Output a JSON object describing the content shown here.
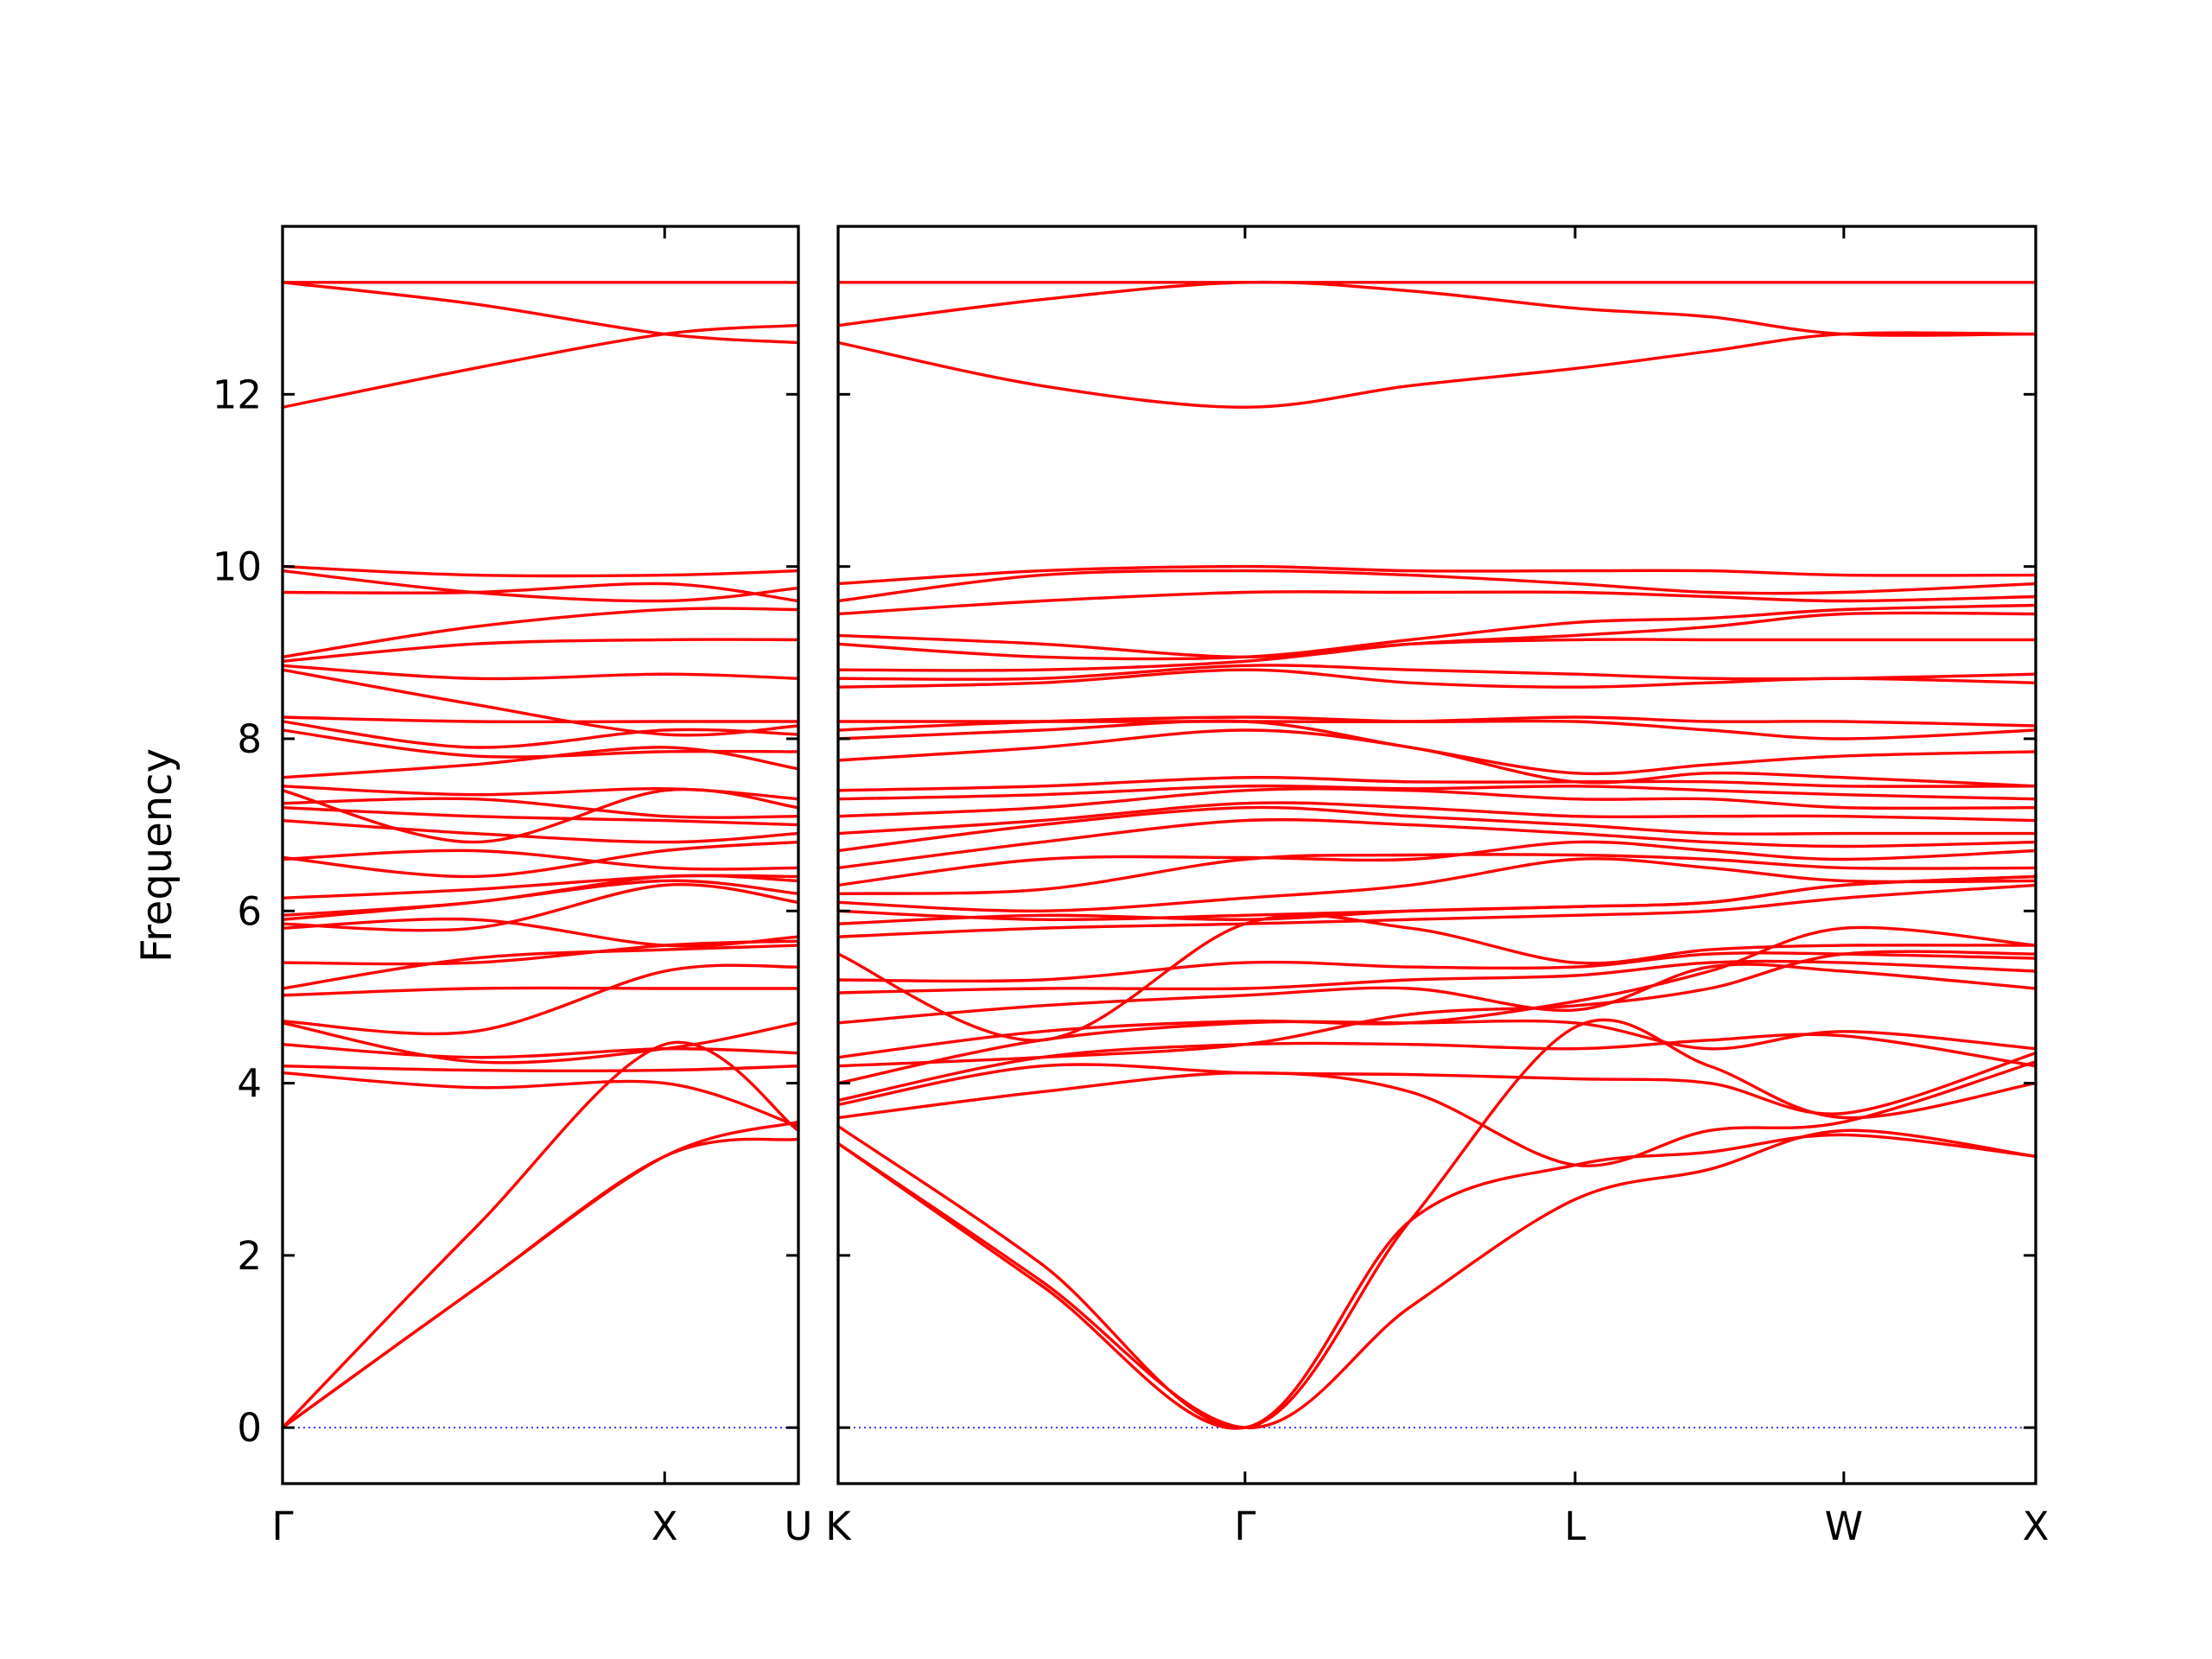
{
  "chart_data": {
    "type": "line",
    "title": "",
    "xlabel": "",
    "ylabel": "Frequency",
    "ylim": [
      -0.65,
      13.95
    ],
    "yticks": [
      0,
      2,
      4,
      6,
      8,
      10,
      12
    ],
    "grid": false,
    "legend": "none",
    "colors": {
      "bands": "#ff0000",
      "zero_line": "#1a1aff",
      "axes": "#000000"
    },
    "panels": [
      {
        "name": "Γ-X-U",
        "xlim": [
          0,
          1.35
        ],
        "labels": [
          {
            "x": 0,
            "text": "Γ"
          },
          {
            "x": 1.0,
            "text": "X"
          },
          {
            "x": 1.35,
            "text": "U"
          }
        ],
        "x": [
          0,
          0.5,
          1.0,
          1.35
        ],
        "bands": [
          [
            0,
            1.6,
            3.15,
            3.35
          ],
          [
            0,
            2.3,
            4.45,
            3.45
          ],
          [
            0,
            1.6,
            3.15,
            3.55
          ],
          [
            4.12,
            3.95,
            4.0,
            3.5
          ],
          [
            4.2,
            4.15,
            4.15,
            4.2
          ],
          [
            4.45,
            4.3,
            4.4,
            4.35
          ],
          [
            4.7,
            4.25,
            4.4,
            4.7
          ],
          [
            4.72,
            4.6,
            5.3,
            5.35
          ],
          [
            5.02,
            5.1,
            5.1,
            5.1
          ],
          [
            5.1,
            5.45,
            5.55,
            5.6
          ],
          [
            5.4,
            5.4,
            5.6,
            5.65
          ],
          [
            5.8,
            5.9,
            5.6,
            5.7
          ],
          [
            5.85,
            5.8,
            6.3,
            6.1
          ],
          [
            5.9,
            6.1,
            6.35,
            6.2
          ],
          [
            5.95,
            6.1,
            6.4,
            6.35
          ],
          [
            6.15,
            6.25,
            6.4,
            6.4
          ],
          [
            6.6,
            6.7,
            6.5,
            6.5
          ],
          [
            6.62,
            6.4,
            6.7,
            6.8
          ],
          [
            7.05,
            6.9,
            6.8,
            6.9
          ],
          [
            7.2,
            7.1,
            7.05,
            7.0
          ],
          [
            7.25,
            7.3,
            7.1,
            7.1
          ],
          [
            7.4,
            6.8,
            7.4,
            7.2
          ],
          [
            7.45,
            7.35,
            7.42,
            7.3
          ],
          [
            7.55,
            7.7,
            7.9,
            7.65
          ],
          [
            8.1,
            7.8,
            7.85,
            7.85
          ],
          [
            8.2,
            7.9,
            8.1,
            8.05
          ],
          [
            8.25,
            8.2,
            8.2,
            8.2
          ],
          [
            8.8,
            8.4,
            8.05,
            8.15
          ],
          [
            8.85,
            8.7,
            8.75,
            8.7
          ],
          [
            8.9,
            9.1,
            9.15,
            9.15
          ],
          [
            8.95,
            9.3,
            9.5,
            9.5
          ],
          [
            9.7,
            9.7,
            9.8,
            9.6
          ],
          [
            9.95,
            9.7,
            9.6,
            9.75
          ],
          [
            10.0,
            9.9,
            9.9,
            9.95
          ],
          [
            11.85,
            12.3,
            12.7,
            12.8
          ],
          [
            13.3,
            13.05,
            12.7,
            12.6
          ],
          [
            13.3,
            13.3,
            13.3,
            13.3
          ]
        ]
      },
      {
        "name": "K-Γ-L-W-X",
        "xlim": [
          0,
          3.12
        ],
        "labels": [
          {
            "x": 0,
            "text": "K"
          },
          {
            "x": 1.06,
            "text": "Γ"
          },
          {
            "x": 1.92,
            "text": "L"
          },
          {
            "x": 2.62,
            "text": "W"
          },
          {
            "x": 3.12,
            "text": "X"
          }
        ],
        "x": [
          0,
          0.53,
          1.06,
          1.49,
          1.92,
          2.27,
          2.62,
          3.12
        ],
        "bands": [
          [
            3.3,
            1.7,
            0,
            1.4,
            2.65,
            3.0,
            3.45,
            3.15
          ],
          [
            3.3,
            1.65,
            0,
            2.4,
            3.05,
            3.2,
            3.4,
            3.15
          ],
          [
            3.5,
            1.9,
            0,
            2.4,
            4.65,
            4.2,
            3.6,
            4.0
          ],
          [
            3.6,
            3.9,
            4.12,
            3.9,
            3.05,
            3.45,
            3.55,
            4.25
          ],
          [
            3.75,
            4.2,
            4.12,
            4.1,
            4.05,
            4.0,
            3.65,
            4.35
          ],
          [
            3.8,
            4.3,
            4.45,
            4.45,
            4.4,
            4.5,
            4.55,
            4.2
          ],
          [
            4.0,
            4.5,
            4.7,
            4.7,
            4.7,
            4.4,
            4.6,
            4.4
          ],
          [
            4.2,
            4.3,
            4.45,
            4.8,
            4.9,
            5.1,
            5.5,
            5.5
          ],
          [
            4.3,
            4.6,
            4.72,
            4.7,
            4.95,
            5.3,
            5.8,
            5.6
          ],
          [
            4.7,
            4.9,
            5.02,
            5.1,
            4.85,
            5.35,
            5.3,
            5.1
          ],
          [
            5.05,
            5.1,
            5.1,
            5.2,
            5.25,
            5.4,
            5.4,
            5.3
          ],
          [
            5.2,
            5.2,
            5.4,
            5.35,
            5.35,
            5.5,
            5.5,
            5.45
          ],
          [
            5.5,
            4.5,
            5.85,
            5.8,
            5.4,
            5.55,
            5.6,
            5.6
          ],
          [
            5.7,
            5.8,
            5.85,
            5.9,
            5.95,
            6.0,
            6.15,
            6.3
          ],
          [
            5.85,
            5.95,
            5.9,
            6.0,
            6.05,
            6.1,
            6.3,
            6.4
          ],
          [
            6.0,
            5.9,
            5.95,
            6.0,
            6.05,
            6.1,
            6.3,
            6.4
          ],
          [
            6.1,
            6.0,
            6.15,
            6.3,
            6.6,
            6.5,
            6.35,
            6.35
          ],
          [
            6.2,
            6.25,
            6.6,
            6.65,
            6.65,
            6.6,
            6.5,
            6.5
          ],
          [
            6.3,
            6.6,
            6.62,
            6.6,
            6.8,
            6.7,
            6.6,
            6.7
          ],
          [
            6.5,
            6.8,
            7.05,
            7.0,
            6.9,
            6.8,
            6.75,
            6.8
          ],
          [
            6.7,
            7.0,
            7.2,
            7.1,
            7.0,
            6.9,
            6.9,
            6.9
          ],
          [
            6.9,
            7.05,
            7.25,
            7.2,
            7.1,
            7.1,
            7.1,
            7.05
          ],
          [
            7.1,
            7.2,
            7.4,
            7.4,
            7.3,
            7.3,
            7.2,
            7.2
          ],
          [
            7.3,
            7.35,
            7.45,
            7.42,
            7.45,
            7.4,
            7.35,
            7.3
          ],
          [
            7.4,
            7.45,
            7.55,
            7.5,
            7.5,
            7.5,
            7.45,
            7.45
          ],
          [
            7.75,
            7.9,
            8.1,
            7.9,
            7.5,
            7.6,
            7.55,
            7.45
          ],
          [
            8.0,
            8.1,
            8.2,
            7.9,
            7.6,
            7.7,
            7.8,
            7.85
          ],
          [
            8.1,
            8.2,
            8.25,
            8.2,
            8.2,
            8.1,
            8.0,
            8.1
          ],
          [
            8.2,
            8.2,
            8.2,
            8.2,
            8.25,
            8.2,
            8.2,
            8.15
          ],
          [
            8.6,
            8.65,
            8.8,
            8.65,
            8.6,
            8.65,
            8.7,
            8.65
          ],
          [
            8.7,
            8.7,
            8.85,
            8.8,
            8.75,
            8.7,
            8.7,
            8.75
          ],
          [
            8.8,
            8.8,
            8.9,
            9.1,
            9.2,
            9.3,
            9.45,
            9.45
          ],
          [
            9.1,
            8.95,
            8.95,
            9.15,
            9.35,
            9.4,
            9.5,
            9.55
          ],
          [
            9.2,
            9.1,
            8.95,
            9.1,
            9.15,
            9.15,
            9.15,
            9.15
          ],
          [
            9.45,
            9.6,
            9.7,
            9.7,
            9.7,
            9.65,
            9.6,
            9.65
          ],
          [
            9.6,
            9.9,
            9.95,
            9.9,
            9.8,
            9.7,
            9.7,
            9.8
          ],
          [
            9.8,
            9.95,
            10.0,
            9.95,
            9.95,
            9.95,
            9.9,
            9.9
          ],
          [
            12.6,
            12.1,
            11.85,
            12.1,
            12.3,
            12.5,
            12.7,
            12.7
          ],
          [
            12.8,
            13.1,
            13.3,
            13.2,
            13.0,
            12.9,
            12.7,
            12.7
          ],
          [
            13.3,
            13.3,
            13.3,
            13.3,
            13.3,
            13.3,
            13.3,
            13.3
          ]
        ]
      }
    ]
  }
}
